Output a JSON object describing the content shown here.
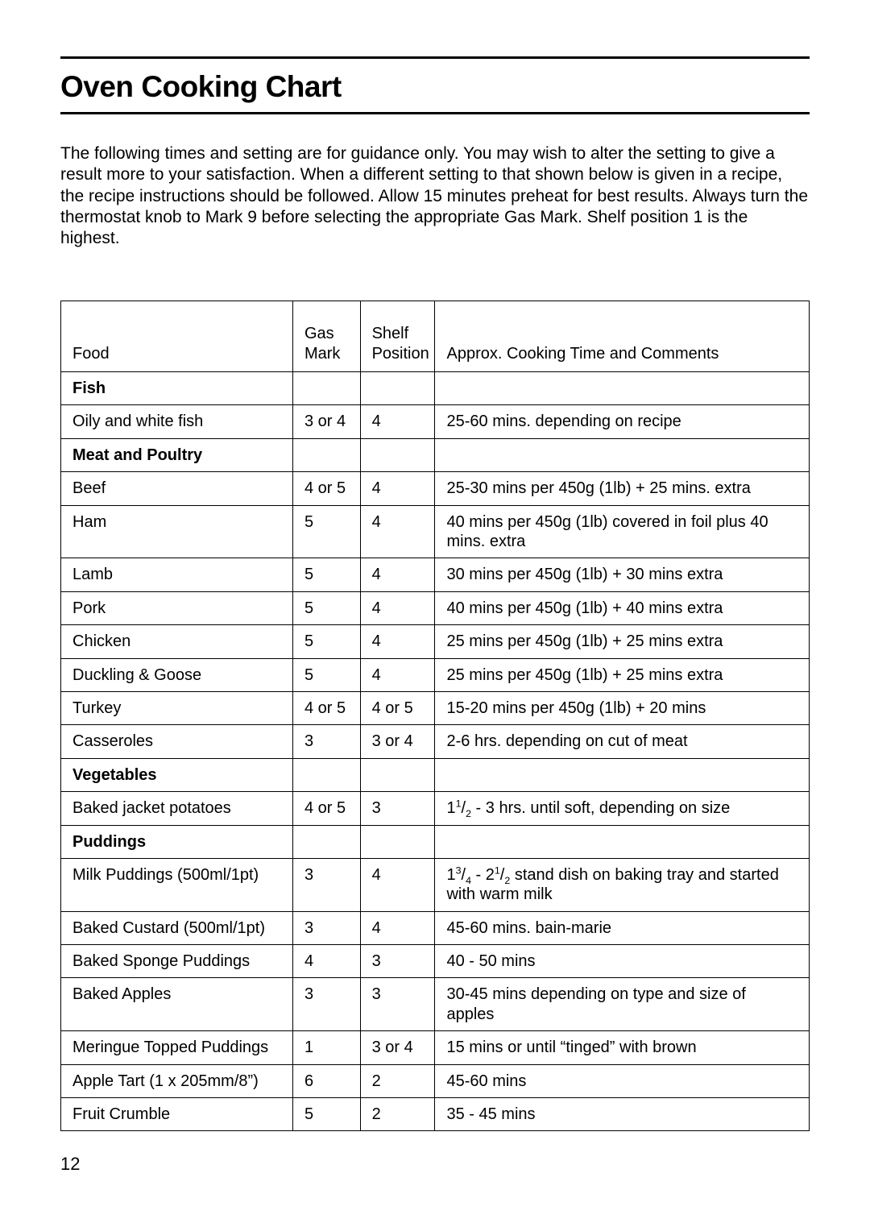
{
  "title": "Oven Cooking Chart",
  "intro": "The following times and setting are for guidance only. You may wish to alter the setting to give a result more to your satisfaction. When a different setting to that shown below is given in a recipe, the recipe instructions should be followed. Allow 15 minutes preheat for best results. Always turn the thermostat knob to Mark 9 before selecting the appropriate Gas Mark. Shelf position 1 is the highest.",
  "page_number": "12",
  "colors": {
    "text": "#000000",
    "background": "#ffffff",
    "rule": "#000000",
    "border": "#000000"
  },
  "table": {
    "headers": {
      "food": "Food",
      "gas_mark_line1": "Gas",
      "gas_mark_line2": "Mark",
      "shelf_line1": "Shelf",
      "shelf_line2": "Position",
      "comments": "Approx. Cooking Time and Comments"
    },
    "rows": [
      {
        "kind": "section",
        "food": "Fish"
      },
      {
        "kind": "item",
        "food": "Oily and white fish",
        "gas_mark": "3 or 4",
        "shelf": "4",
        "comments": "25-60 mins. depending on recipe"
      },
      {
        "kind": "section",
        "food": "Meat and Poultry"
      },
      {
        "kind": "item",
        "food": "Beef",
        "gas_mark": "4 or 5",
        "shelf": "4",
        "comments": "25-30 mins per 450g (1lb) + 25 mins. extra"
      },
      {
        "kind": "item",
        "food": "Ham",
        "gas_mark": "5",
        "shelf": "4",
        "comments": "40 mins per 450g (1lb) covered in foil plus 40 mins. extra"
      },
      {
        "kind": "item",
        "food": "Lamb",
        "gas_mark": "5",
        "shelf": "4",
        "comments": "30 mins per 450g (1lb) + 30 mins extra"
      },
      {
        "kind": "item",
        "food": "Pork",
        "gas_mark": "5",
        "shelf": "4",
        "comments": "40 mins per 450g (1lb) + 40 mins extra"
      },
      {
        "kind": "item",
        "food": "Chicken",
        "gas_mark": "5",
        "shelf": "4",
        "comments": "25 mins per 450g (1lb) + 25 mins extra"
      },
      {
        "kind": "item",
        "food": "Duckling & Goose",
        "gas_mark": "5",
        "shelf": "4",
        "comments": "25 mins per 450g (1lb) + 25 mins extra"
      },
      {
        "kind": "item",
        "food": "Turkey",
        "gas_mark": "4 or 5",
        "shelf": "4 or 5",
        "comments": "15-20 mins per 450g (1lb) + 20 mins"
      },
      {
        "kind": "item",
        "food": "Casseroles",
        "gas_mark": "3",
        "shelf": "3 or 4",
        "comments": "2-6 hrs. depending on cut of meat"
      },
      {
        "kind": "section",
        "food": "Vegetables"
      },
      {
        "kind": "item",
        "food": "Baked jacket potatoes",
        "gas_mark": "4 or 5",
        "shelf": "3",
        "comments_html": "1<sup>1</sup>/<sub>2</sub> - 3 hrs. until soft, depending on size"
      },
      {
        "kind": "section",
        "food": "Puddings"
      },
      {
        "kind": "item",
        "food": "Milk Puddings (500ml/1pt)",
        "gas_mark": "3",
        "shelf": "4",
        "comments_html": "1<sup>3</sup>/<sub>4</sub> - 2<sup>1</sup>/<sub>2</sub> stand dish on baking tray and started with warm milk"
      },
      {
        "kind": "item",
        "food": "Baked Custard (500ml/1pt)",
        "gas_mark": "3",
        "shelf": "4",
        "comments": "45-60 mins. bain-marie"
      },
      {
        "kind": "item",
        "food": "Baked Sponge Puddings",
        "gas_mark": "4",
        "shelf": "3",
        "comments": "40 - 50 mins"
      },
      {
        "kind": "item",
        "food": "Baked Apples",
        "gas_mark": "3",
        "shelf": "3",
        "comments": "30-45 mins depending on type and size of apples"
      },
      {
        "kind": "item",
        "food": "Meringue Topped Puddings",
        "gas_mark": "1",
        "shelf": "3 or 4",
        "comments": "15 mins or until “tinged” with brown"
      },
      {
        "kind": "item",
        "food": "Apple Tart (1 x 205mm/8”)",
        "gas_mark": "6",
        "shelf": "2",
        "comments": "45-60 mins"
      },
      {
        "kind": "item",
        "food": "Fruit Crumble",
        "gas_mark": "5",
        "shelf": "2",
        "comments": "35 - 45 mins"
      }
    ]
  }
}
